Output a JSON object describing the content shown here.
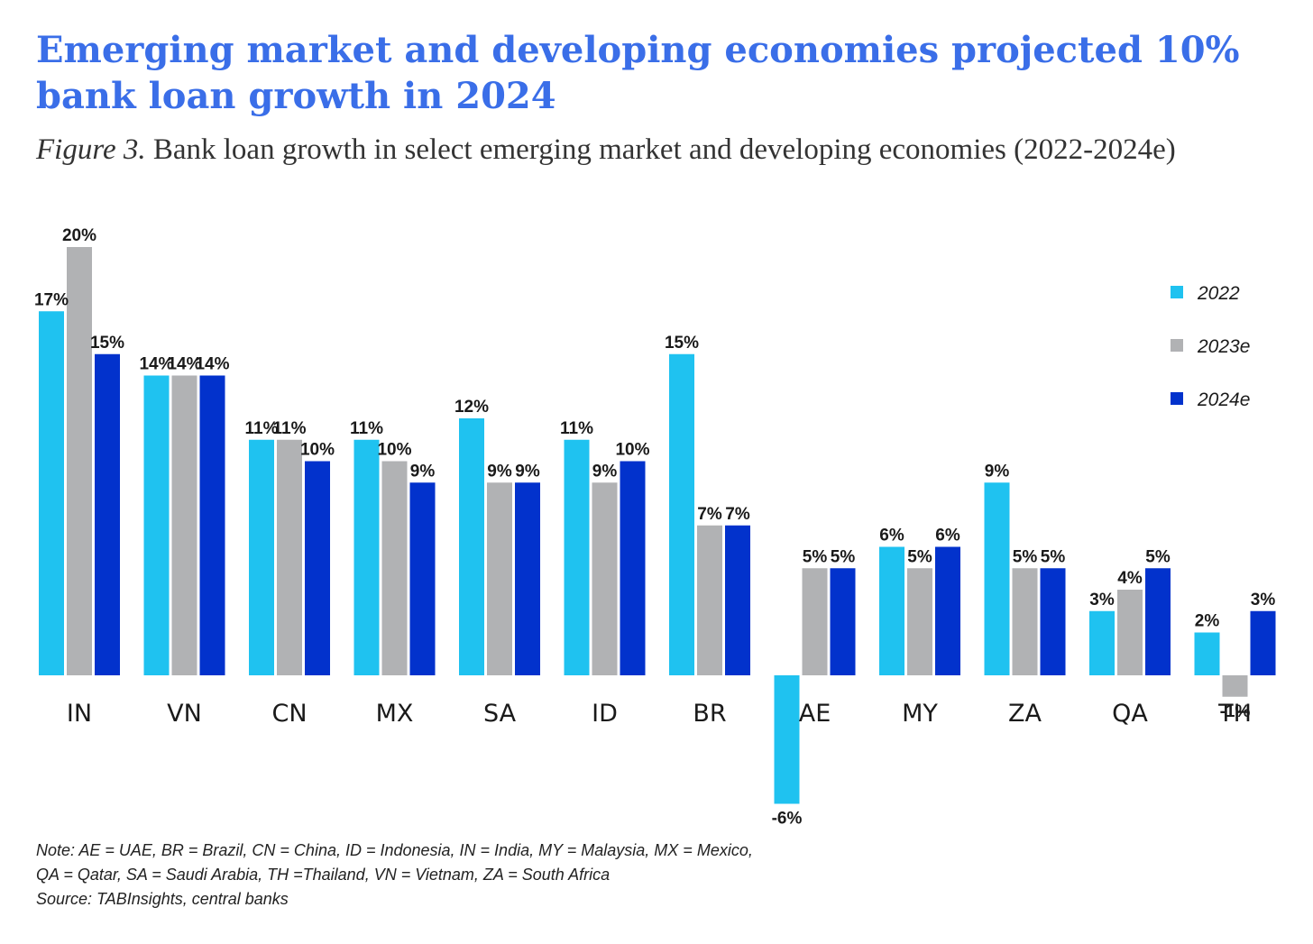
{
  "headline": "Emerging market and developing economies projected 10% bank loan growth in 2024",
  "subtitle": {
    "figure_label": "Figure 3.",
    "text": " Bank loan growth in select emerging market and developing economies (2022-2024e)"
  },
  "notes": {
    "note_line1": "Note: AE = UAE, BR = Brazil, CN = China, ID = Indonesia, IN = India, MY = Malaysia, MX = Mexico,",
    "note_line2": "QA = Qatar, SA = Saudi Arabia, TH =Thailand, VN = Vietnam, ZA = South Africa",
    "source": "Source: TABInsights, central banks"
  },
  "chart_data": {
    "type": "bar",
    "title": "",
    "xlabel": "",
    "ylabel": "",
    "ylim": [
      -6.5,
      20.5
    ],
    "grid": false,
    "legend_position": "right",
    "value_format": "percent",
    "categories": [
      "IN",
      "VN",
      "CN",
      "MX",
      "SA",
      "ID",
      "BR",
      "AE",
      "MY",
      "ZA",
      "QA",
      "TH"
    ],
    "series": [
      {
        "name": "2022",
        "color": "#1fc2f0",
        "values": [
          17,
          14,
          11,
          11,
          12,
          11,
          15,
          -6,
          6,
          9,
          3,
          2
        ]
      },
      {
        "name": "2023e",
        "color": "#b1b2b4",
        "values": [
          20,
          14,
          11,
          10,
          9,
          9,
          7,
          5,
          5,
          5,
          4,
          -1
        ]
      },
      {
        "name": "2024e",
        "color": "#0232cc",
        "values": [
          15,
          14,
          10,
          9,
          9,
          10,
          7,
          5,
          6,
          5,
          5,
          3
        ]
      }
    ]
  }
}
